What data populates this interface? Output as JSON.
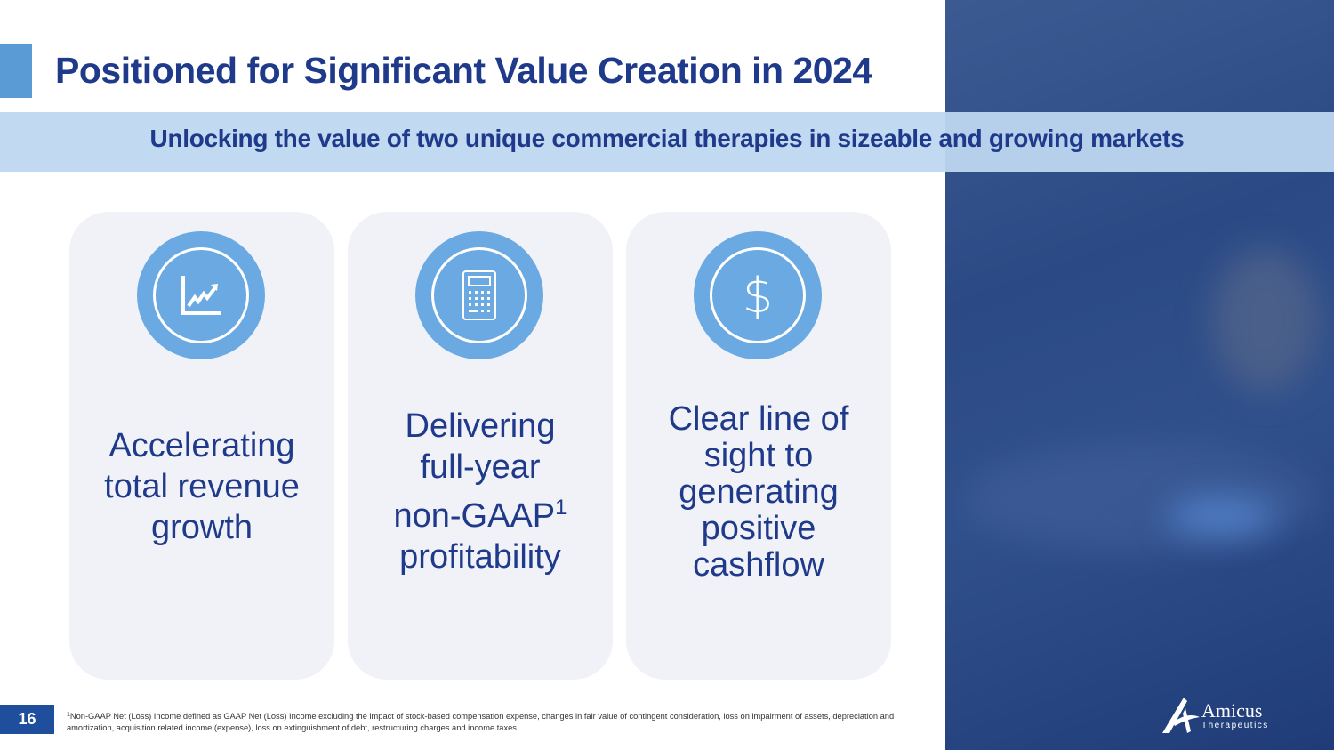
{
  "slide": {
    "title": "Positioned for Significant Value Creation in 2024",
    "subtitle": "Unlocking the value of two unique commercial therapies in sizeable and growing markets",
    "page_number": "16"
  },
  "cards": [
    {
      "icon": "line-chart-trending-up-icon",
      "lines": [
        "Accelerating",
        "total revenue",
        "growth"
      ]
    },
    {
      "icon": "calculator-icon",
      "lines": [
        "Delivering",
        "full-year",
        "non-GAAP",
        "profitability"
      ],
      "superscript": "1"
    },
    {
      "icon": "dollar-sign-icon",
      "symbol": "$",
      "lines": [
        "Clear line of",
        "sight to",
        "generating",
        "positive",
        "cashflow"
      ]
    }
  ],
  "footnote": {
    "marker": "1",
    "text": "Non-GAAP Net (Loss) Income defined as GAAP Net (Loss) Income excluding the impact of stock-based compensation expense, changes in fair value of contingent consideration, loss on impairment of assets, depreciation and amortization, acquisition related income (expense), loss on extinguishment of debt, restructuring charges and income taxes."
  },
  "logo": {
    "name": "Amicus",
    "tagline": "Therapeutics"
  },
  "colors": {
    "title": "#1f3a8a",
    "accent": "#5b9bd5",
    "icon_circle": "#6aa9e2",
    "card_bg": "#f0f2f8",
    "band": "#bed7f0"
  }
}
